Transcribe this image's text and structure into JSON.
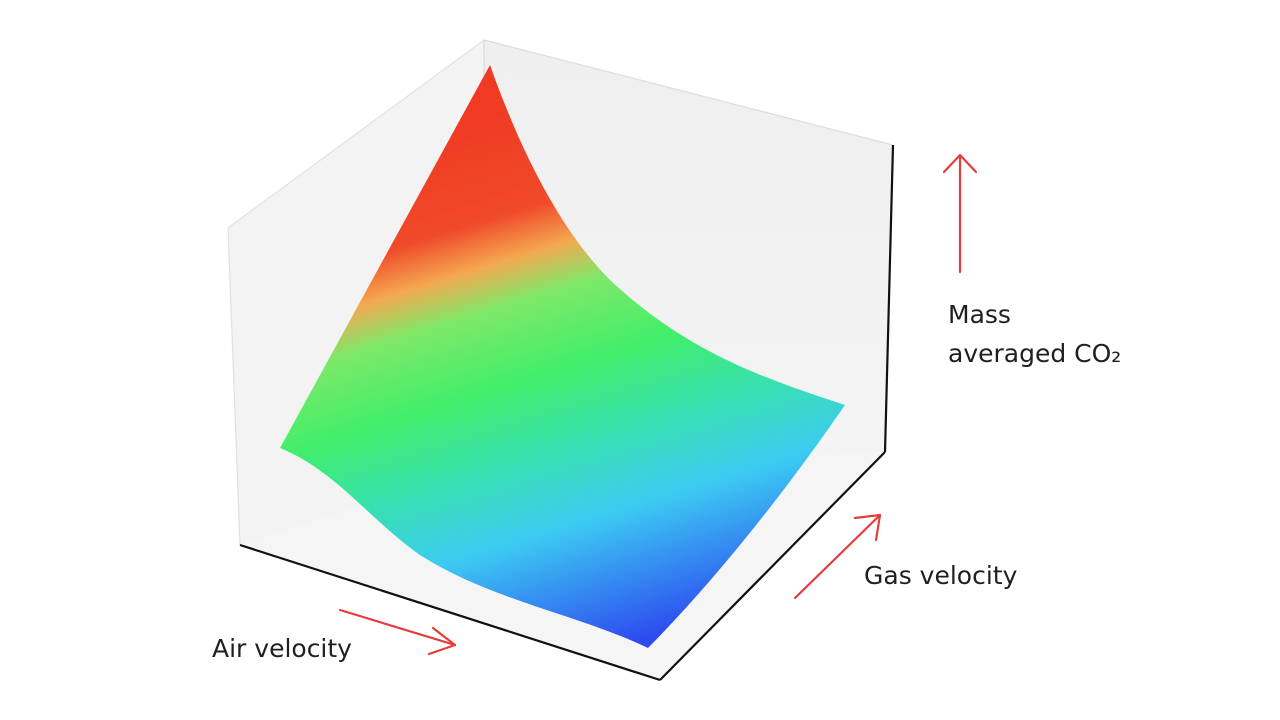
{
  "chart_data": {
    "type": "surface",
    "title": "",
    "x_axis": {
      "label": "Air velocity"
    },
    "y_axis": {
      "label": "Gas velocity"
    },
    "z_axis": {
      "label_line1": "Mass",
      "label_line2": "averaged CO₂"
    },
    "grid": false,
    "legend": "none",
    "colormap": [
      "#2d4cf0",
      "#3dcbf2",
      "#42ee6a",
      "#f4e160",
      "#f04426"
    ],
    "arrow_color": "#e63b3b"
  }
}
